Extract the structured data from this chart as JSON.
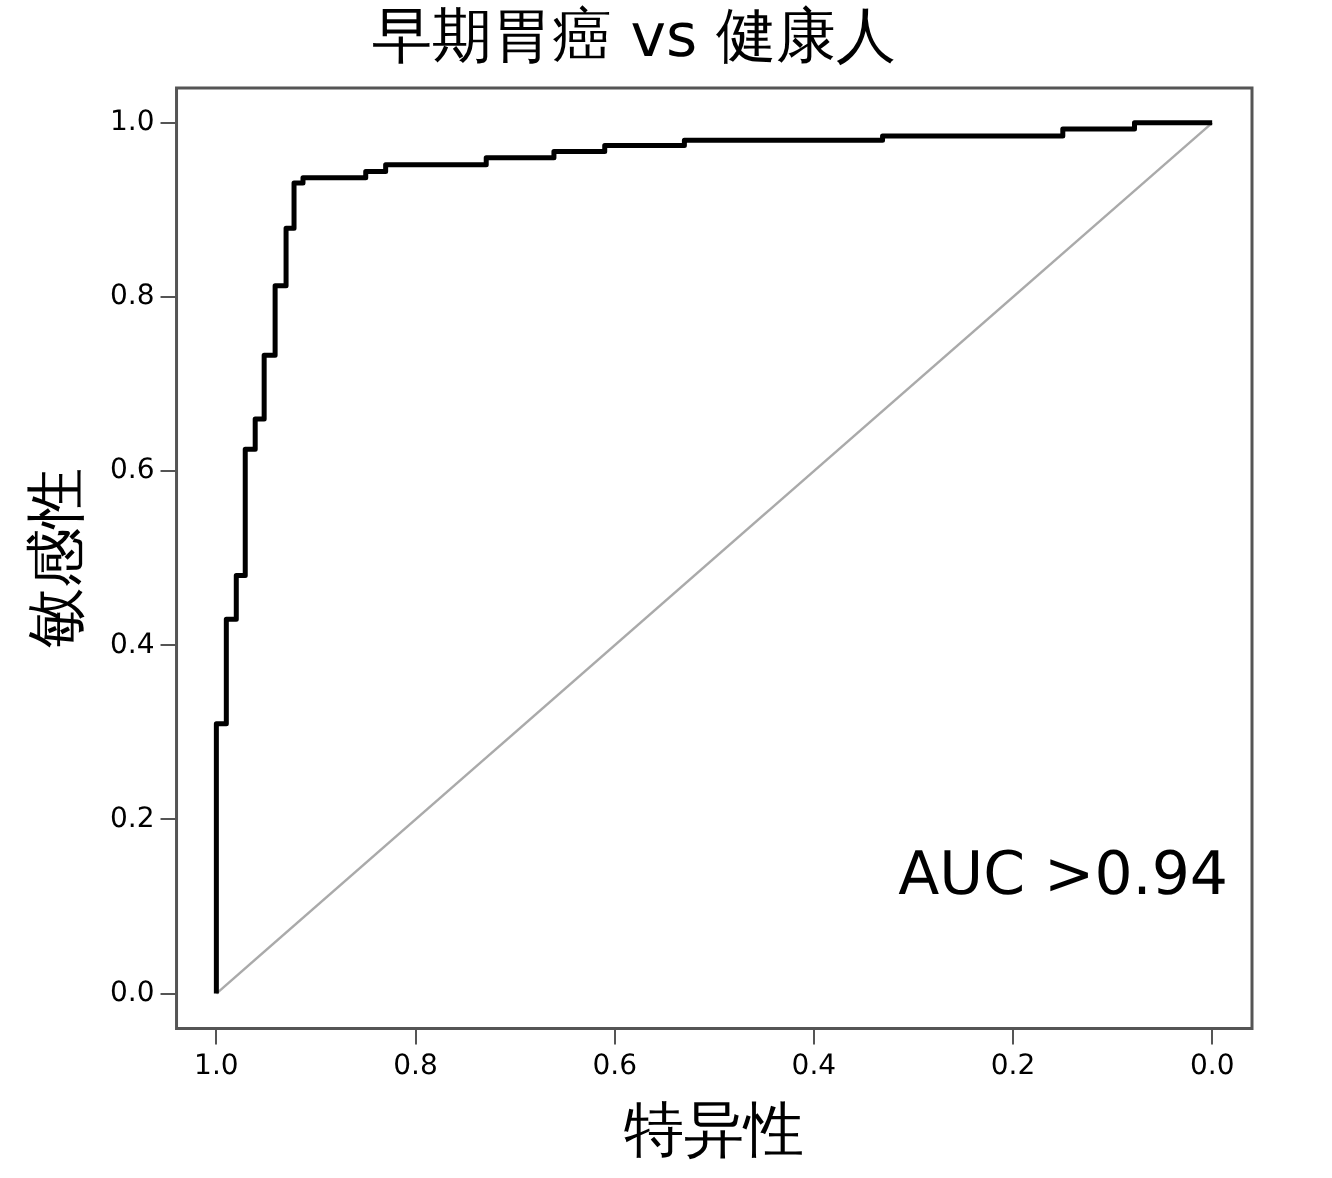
{
  "chart_data": {
    "type": "line",
    "title": "早期胃癌 vs 健康人",
    "xlabel": "特异性",
    "ylabel": "敏感性",
    "xlim": [
      1.04,
      -0.04
    ],
    "ylim": [
      -0.04,
      1.04
    ],
    "xticks": [
      {
        "value": 1,
        "label": "1.0"
      },
      {
        "value": 0.8,
        "label": "0.8"
      },
      {
        "value": 0.6,
        "label": "0.6"
      },
      {
        "value": 0.4,
        "label": "0.4"
      },
      {
        "value": 0.2,
        "label": "0.2"
      },
      {
        "value": 0,
        "label": "0.0"
      }
    ],
    "yticks": [
      {
        "value": 0,
        "label": "0.0"
      },
      {
        "value": 0.2,
        "label": "0.2"
      },
      {
        "value": 0.4,
        "label": "0.4"
      },
      {
        "value": 0.6,
        "label": "0.6"
      },
      {
        "value": 0.8,
        "label": "0.8"
      },
      {
        "value": 1,
        "label": "1.0"
      }
    ],
    "grid": false,
    "legend": false,
    "marker": "none",
    "line_style": "solid",
    "annotations": [
      "AUC >0.94"
    ],
    "series": [
      {
        "color": "#000000",
        "x": [
          1,
          1,
          0.99,
          0.99,
          0.98,
          0.98,
          0.971,
          0.971,
          0.961,
          0.961,
          0.952,
          0.952,
          0.941,
          0.941,
          0.93,
          0.93,
          0.922,
          0.922,
          0.913,
          0.913,
          0.85,
          0.85,
          0.83,
          0.83,
          0.729,
          0.729,
          0.661,
          0.661,
          0.61,
          0.61,
          0.53,
          0.53,
          0.331,
          0.331,
          0.15,
          0.15,
          0.078,
          0.078,
          0
        ],
        "values": [
          0,
          0.31,
          0.31,
          0.43,
          0.43,
          0.48,
          0.48,
          0.625,
          0.625,
          0.66,
          0.66,
          0.733,
          0.733,
          0.813,
          0.813,
          0.879,
          0.879,
          0.931,
          0.931,
          0.937,
          0.937,
          0.944,
          0.944,
          0.952,
          0.952,
          0.96,
          0.96,
          0.967,
          0.967,
          0.974,
          0.974,
          0.98,
          0.98,
          0.985,
          0.985,
          0.993,
          0.993,
          1,
          1
        ]
      },
      {
        "color": "#aaaaaa",
        "x": [
          1,
          0
        ],
        "values": [
          0,
          1
        ]
      }
    ]
  }
}
